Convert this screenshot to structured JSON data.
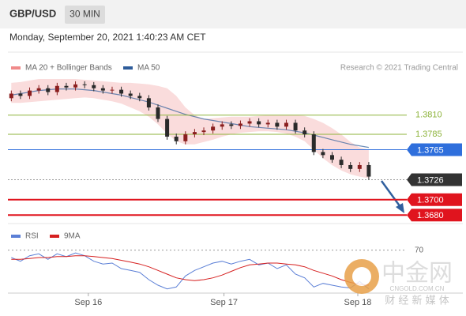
{
  "header": {
    "symbol": "GBP/USD",
    "timeframe": "30 MIN",
    "datetime": "Monday, September 20, 2021 1:40:23 AM CET"
  },
  "chart_data": [
    {
      "type": "candlestick",
      "source": "Research © 2021 Trading Central",
      "xlim": [
        -0.2,
        40.3
      ],
      "ylim": [
        1.3672,
        1.3857
      ],
      "up_color": "#8b1f1f",
      "down_color": "#2a2a2a",
      "open": [
        1.3832,
        1.3838,
        1.3835,
        1.3842,
        1.3845,
        1.384,
        1.3848,
        1.3846,
        1.385,
        1.3849,
        1.3845,
        1.3842,
        1.3843,
        1.3838,
        1.3835,
        1.3832,
        1.382,
        1.3805,
        1.3782,
        1.3776,
        1.3785,
        1.3788,
        1.379,
        1.3795,
        1.3798,
        1.3796,
        1.3799,
        1.3802,
        1.3798,
        1.38,
        1.3795,
        1.38,
        1.379,
        1.3785,
        1.3762,
        1.3758,
        1.3752,
        1.3745,
        1.374,
        1.3745
      ],
      "high": [
        1.3842,
        1.3842,
        1.3846,
        1.3849,
        1.3849,
        1.3852,
        1.3852,
        1.3854,
        1.3854,
        1.3853,
        1.3849,
        1.3847,
        1.3847,
        1.3842,
        1.3839,
        1.3836,
        1.3824,
        1.3809,
        1.3786,
        1.3789,
        1.3792,
        1.3794,
        1.3799,
        1.3802,
        1.3802,
        1.3803,
        1.3806,
        1.3806,
        1.3804,
        1.3804,
        1.3804,
        1.3804,
        1.3794,
        1.3789,
        1.3766,
        1.3762,
        1.3756,
        1.3749,
        1.3749,
        1.3749
      ],
      "low": [
        1.3828,
        1.3831,
        1.3831,
        1.3838,
        1.3836,
        1.3836,
        1.3842,
        1.3842,
        1.3845,
        1.3841,
        1.3838,
        1.3838,
        1.3834,
        1.3831,
        1.3828,
        1.3816,
        1.3801,
        1.3778,
        1.3772,
        1.3772,
        1.3781,
        1.3784,
        1.3786,
        1.3791,
        1.3792,
        1.3792,
        1.3795,
        1.3794,
        1.3794,
        1.3791,
        1.3791,
        1.3786,
        1.3781,
        1.3758,
        1.3754,
        1.3748,
        1.3741,
        1.3736,
        1.3736,
        1.3726
      ],
      "close": [
        1.3838,
        1.3835,
        1.3842,
        1.3845,
        1.384,
        1.3848,
        1.3846,
        1.385,
        1.3849,
        1.3845,
        1.3842,
        1.3843,
        1.3838,
        1.3835,
        1.3832,
        1.382,
        1.3805,
        1.3782,
        1.3776,
        1.3785,
        1.3788,
        1.379,
        1.3795,
        1.3798,
        1.3796,
        1.3799,
        1.3802,
        1.3798,
        1.38,
        1.3795,
        1.38,
        1.379,
        1.3785,
        1.3762,
        1.3758,
        1.3752,
        1.3745,
        1.374,
        1.3745,
        1.373
      ],
      "overlays": [
        {
          "name": "MA 20 + Bollinger Bands",
          "color": "#f08a8a",
          "upper": [
            1.3852,
            1.3853,
            1.3855,
            1.3857,
            1.3857,
            1.3857,
            1.3857,
            1.3857,
            1.3856,
            1.3855,
            1.3854,
            1.3853,
            1.3852,
            1.3852,
            1.3851,
            1.385,
            1.3848,
            1.3845,
            1.3835,
            1.382,
            1.381,
            1.3805,
            1.3806,
            1.3807,
            1.3808,
            1.3808,
            1.3808,
            1.3809,
            1.381,
            1.381,
            1.381,
            1.381,
            1.3809,
            1.3805,
            1.38,
            1.3793,
            1.3785,
            1.3775,
            1.3768,
            1.3765
          ],
          "lower": [
            1.3826,
            1.3826,
            1.3827,
            1.3828,
            1.3829,
            1.383,
            1.3831,
            1.3832,
            1.3833,
            1.3832,
            1.383,
            1.3828,
            1.3825,
            1.382,
            1.3815,
            1.3808,
            1.3798,
            1.3786,
            1.3776,
            1.3772,
            1.3772,
            1.3775,
            1.3778,
            1.3782,
            1.3785,
            1.3787,
            1.3788,
            1.3789,
            1.3789,
            1.3788,
            1.3786,
            1.3782,
            1.3776,
            1.3765,
            1.3754,
            1.3745,
            1.3738,
            1.3733,
            1.373,
            1.3728
          ]
        },
        {
          "name": "MA 50",
          "color": "#2e5c9a",
          "values": [
            1.3836,
            1.3838,
            1.384,
            1.3842,
            1.3843,
            1.3844,
            1.3844,
            1.3844,
            1.3843,
            1.3842,
            1.384,
            1.3838,
            1.3836,
            1.3833,
            1.383,
            1.3827,
            1.3823,
            1.3819,
            1.3815,
            1.3811,
            1.3808,
            1.3805,
            1.3803,
            1.3801,
            1.3799,
            1.3797,
            1.3795,
            1.3794,
            1.3793,
            1.3792,
            1.3791,
            1.3789,
            1.3787,
            1.3784,
            1.3781,
            1.3778,
            1.3775,
            1.3772,
            1.377,
            1.3768
          ]
        }
      ],
      "levels": {
        "values": [
          1.381,
          1.3785,
          1.3765,
          1.3726,
          1.37,
          1.368
        ],
        "value_labels": [
          "1.3810",
          "1.3785",
          "1.3765",
          "1.3726",
          "1.3700",
          "1.3680"
        ],
        "colors": [
          "#8db33a",
          "#8db33a",
          "#2f6fdc",
          "#333333",
          "#e0141e",
          "#e0141e"
        ],
        "styles": [
          "text",
          "text",
          "box",
          "box",
          "box",
          "box"
        ]
      }
    },
    {
      "type": "line",
      "xlim": [
        -0.2,
        40.3
      ],
      "xticks": [
        {
          "value": 8.4,
          "label": "Sep 16"
        },
        {
          "value": 23.2,
          "label": "Sep 17"
        },
        {
          "value": 37.8,
          "label": "Sep 18"
        }
      ],
      "ylim": [
        20,
        80
      ],
      "yticks": [
        70
      ],
      "series": [
        {
          "name": "RSI",
          "color": "#5b7fd6",
          "values": [
            62,
            58,
            64,
            66,
            60,
            66,
            63,
            67,
            64,
            58,
            55,
            56,
            50,
            48,
            46,
            38,
            32,
            28,
            30,
            42,
            48,
            52,
            56,
            58,
            55,
            58,
            60,
            54,
            56,
            50,
            54,
            44,
            40,
            30,
            34,
            32,
            30,
            29,
            36,
            28
          ]
        },
        {
          "name": "9MA",
          "color": "#d62020",
          "values": [
            60,
            60,
            61,
            62,
            62,
            63,
            63,
            64,
            64,
            63,
            62,
            61,
            59,
            57,
            55,
            52,
            48,
            44,
            40,
            38,
            37,
            38,
            40,
            43,
            47,
            51,
            54,
            55,
            56,
            56,
            55,
            54,
            52,
            48,
            45,
            42,
            38,
            35,
            33,
            32
          ]
        }
      ]
    }
  ],
  "watermark": {
    "name": "中金网",
    "site": "CNGOLD.COM.CN",
    "tagline": "财 经 新 媒 体"
  }
}
